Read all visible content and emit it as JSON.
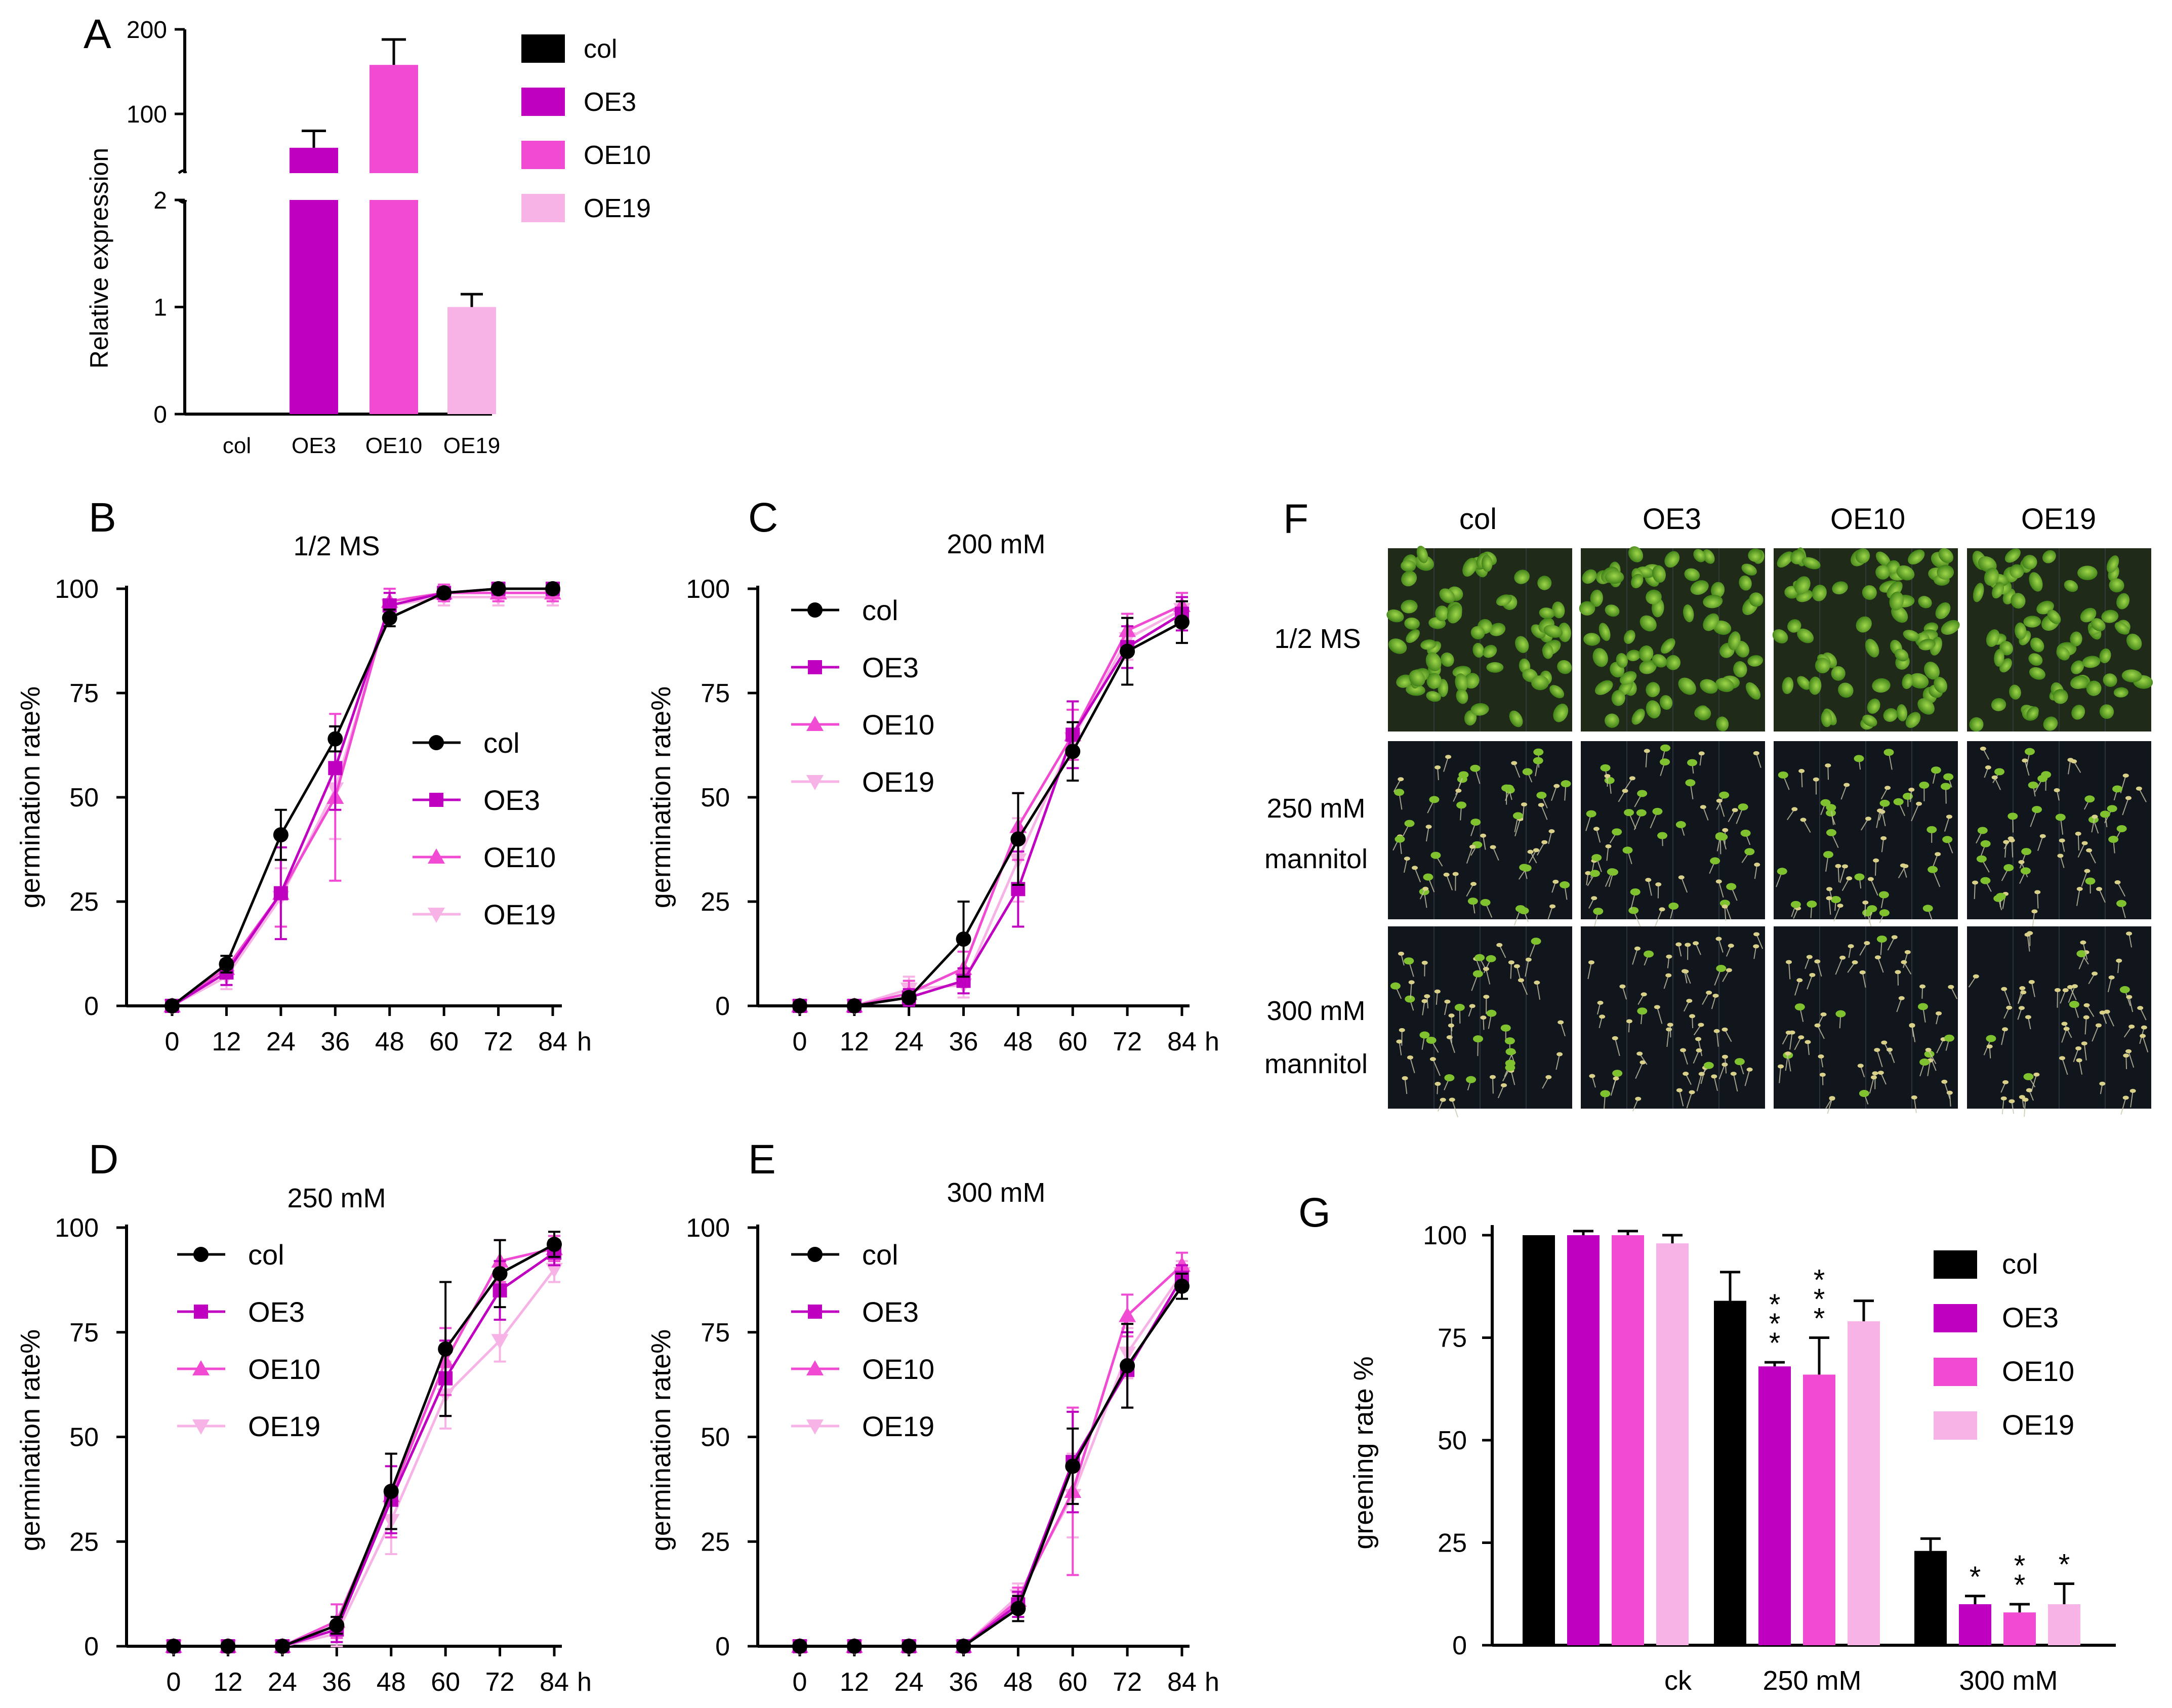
{
  "colors": {
    "col": "#000000",
    "OE3": "#C000C0",
    "OE10": "#F04BD2",
    "OE19": "#F7B2E6",
    "axis": "#000000"
  },
  "chart_data": [
    {
      "id": "A",
      "panel_label": "A",
      "type": "bar",
      "title": "",
      "ylabel": "Relative expression",
      "xlabel": "",
      "categories": [
        "col",
        "OE3",
        "OE10",
        "OE19"
      ],
      "values": [
        0,
        60,
        158,
        1
      ],
      "errors": [
        0,
        20,
        30,
        0.12
      ],
      "axis_break": {
        "lower": [
          0,
          2
        ],
        "upper": [
          30,
          200
        ]
      },
      "yticks_lower": [
        "0",
        "1",
        "2"
      ],
      "yticks_upper": [
        "100",
        "200"
      ],
      "legend": [
        "col",
        "OE3",
        "OE10",
        "OE19"
      ]
    },
    {
      "id": "B",
      "panel_label": "B",
      "type": "line",
      "title": "1/2 MS",
      "ylabel": "germination rate%",
      "xlabel": "h",
      "x": [
        0,
        12,
        24,
        36,
        48,
        60,
        72,
        84
      ],
      "ylim": [
        0,
        100
      ],
      "yticks": [
        "0",
        "25",
        "50",
        "75",
        "100"
      ],
      "series": [
        {
          "name": "col",
          "values": [
            0,
            10,
            41,
            64,
            93,
            99,
            100,
            100
          ],
          "errors": [
            0,
            2,
            6,
            3,
            2,
            1,
            0,
            0
          ]
        },
        {
          "name": "OE3",
          "values": [
            0,
            8,
            27,
            57,
            96,
            99,
            100,
            100
          ],
          "errors": [
            0,
            3,
            11,
            10,
            3,
            1,
            0,
            0
          ]
        },
        {
          "name": "OE10",
          "values": [
            0,
            9,
            27,
            50,
            97,
            99,
            99,
            99
          ],
          "errors": [
            0,
            2,
            8,
            20,
            3,
            2,
            2,
            2
          ]
        },
        {
          "name": "OE19",
          "values": [
            0,
            7,
            26,
            52,
            96,
            98,
            98,
            98
          ],
          "errors": [
            0,
            3,
            7,
            12,
            4,
            2,
            2,
            2
          ]
        }
      ],
      "legend": [
        "col",
        "OE3",
        "OE10",
        "OE19"
      ]
    },
    {
      "id": "C",
      "panel_label": "C",
      "type": "line",
      "title": "200 mM",
      "ylabel": "germination rate%",
      "xlabel": "h",
      "x": [
        0,
        12,
        24,
        36,
        48,
        60,
        72,
        84
      ],
      "ylim": [
        0,
        100
      ],
      "yticks": [
        "0",
        "25",
        "50",
        "75",
        "100"
      ],
      "series": [
        {
          "name": "col",
          "values": [
            0,
            0,
            2,
            16,
            40,
            61,
            85,
            92
          ],
          "errors": [
            0,
            0,
            1,
            9,
            11,
            7,
            8,
            5
          ]
        },
        {
          "name": "OE3",
          "values": [
            0,
            0,
            2,
            6,
            28,
            65,
            86,
            94
          ],
          "errors": [
            0,
            0,
            2,
            3,
            9,
            8,
            5,
            4
          ]
        },
        {
          "name": "OE10",
          "values": [
            0,
            0,
            3,
            9,
            43,
            65,
            90,
            96
          ],
          "errors": [
            0,
            0,
            3,
            4,
            8,
            6,
            4,
            3
          ]
        },
        {
          "name": "OE19",
          "values": [
            0,
            0,
            4,
            5,
            35,
            64,
            88,
            95
          ],
          "errors": [
            0,
            0,
            3,
            3,
            10,
            7,
            5,
            3
          ]
        }
      ],
      "legend": [
        "col",
        "OE3",
        "OE10",
        "OE19"
      ]
    },
    {
      "id": "D",
      "panel_label": "D",
      "type": "line",
      "title": "250 mM",
      "ylabel": "germination rate%",
      "xlabel": "h",
      "x": [
        0,
        12,
        24,
        36,
        48,
        60,
        72,
        84
      ],
      "ylim": [
        0,
        100
      ],
      "yticks": [
        "0",
        "25",
        "50",
        "75",
        "100"
      ],
      "series": [
        {
          "name": "col",
          "values": [
            0,
            0,
            0,
            5,
            37,
            71,
            89,
            96
          ],
          "errors": [
            0,
            0,
            0,
            2,
            9,
            16,
            8,
            3
          ]
        },
        {
          "name": "OE3",
          "values": [
            0,
            0,
            0,
            4,
            35,
            64,
            85,
            94
          ],
          "errors": [
            0,
            0,
            0,
            3,
            8,
            9,
            7,
            3
          ]
        },
        {
          "name": "OE10",
          "values": [
            0,
            0,
            0,
            6,
            36,
            68,
            92,
            95
          ],
          "errors": [
            0,
            0,
            0,
            4,
            10,
            8,
            5,
            3
          ]
        },
        {
          "name": "OE19",
          "values": [
            0,
            0,
            0,
            3,
            30,
            60,
            73,
            90
          ],
          "errors": [
            0,
            0,
            0,
            3,
            8,
            8,
            5,
            3
          ]
        }
      ],
      "legend": [
        "col",
        "OE3",
        "OE10",
        "OE19"
      ]
    },
    {
      "id": "E",
      "panel_label": "E",
      "type": "line",
      "title": "300 mM",
      "ylabel": "germination rate%",
      "xlabel": "h",
      "x": [
        0,
        12,
        24,
        36,
        48,
        60,
        72,
        84
      ],
      "ylim": [
        0,
        100
      ],
      "yticks": [
        "0",
        "25",
        "50",
        "75",
        "100"
      ],
      "series": [
        {
          "name": "col",
          "values": [
            0,
            0,
            0,
            0,
            9,
            43,
            67,
            86
          ],
          "errors": [
            0,
            0,
            0,
            0,
            3,
            9,
            10,
            3
          ]
        },
        {
          "name": "OE3",
          "values": [
            0,
            0,
            0,
            0,
            10,
            44,
            66,
            88
          ],
          "errors": [
            0,
            0,
            0,
            0,
            3,
            12,
            9,
            3
          ]
        },
        {
          "name": "OE10",
          "values": [
            0,
            0,
            0,
            0,
            11,
            37,
            79,
            91
          ],
          "errors": [
            0,
            0,
            0,
            0,
            3,
            20,
            5,
            3
          ]
        },
        {
          "name": "OE19",
          "values": [
            0,
            0,
            0,
            0,
            12,
            36,
            70,
            89
          ],
          "errors": [
            0,
            0,
            0,
            0,
            3,
            10,
            6,
            3
          ]
        }
      ],
      "legend": [
        "col",
        "OE3",
        "OE10",
        "OE19"
      ]
    },
    {
      "id": "G",
      "panel_label": "G",
      "type": "bar",
      "title": "",
      "ylabel": "greening rate %",
      "xlabel": "",
      "categories": [
        "ck",
        "250 mM",
        "300 mM"
      ],
      "ylim": [
        0,
        100
      ],
      "yticks": [
        "0",
        "25",
        "50",
        "75",
        "100"
      ],
      "series": [
        {
          "name": "col",
          "values": [
            100,
            84,
            23
          ],
          "errors": [
            0,
            7,
            3
          ],
          "stars": [
            "",
            "",
            ""
          ]
        },
        {
          "name": "OE3",
          "values": [
            100,
            68,
            10
          ],
          "errors": [
            1,
            1,
            2
          ],
          "stars": [
            "",
            "***",
            "*"
          ]
        },
        {
          "name": "OE10",
          "values": [
            100,
            66,
            8
          ],
          "errors": [
            1,
            9,
            2
          ],
          "stars": [
            "",
            "***",
            "**"
          ]
        },
        {
          "name": "OE19",
          "values": [
            98,
            79,
            10
          ],
          "errors": [
            2,
            5,
            5
          ],
          "stars": [
            "",
            "",
            "*"
          ]
        }
      ],
      "legend": [
        "col",
        "OE3",
        "OE10",
        "OE19"
      ]
    }
  ],
  "panel_F": {
    "label": "F",
    "columns": [
      "col",
      "OE3",
      "OE10",
      "OE19"
    ],
    "rows": [
      {
        "line1": "1/2 MS",
        "line2": ""
      },
      {
        "line1": "250 mM",
        "line2": "mannitol"
      },
      {
        "line1": "300 mM",
        "line2": "mannitol"
      }
    ]
  }
}
